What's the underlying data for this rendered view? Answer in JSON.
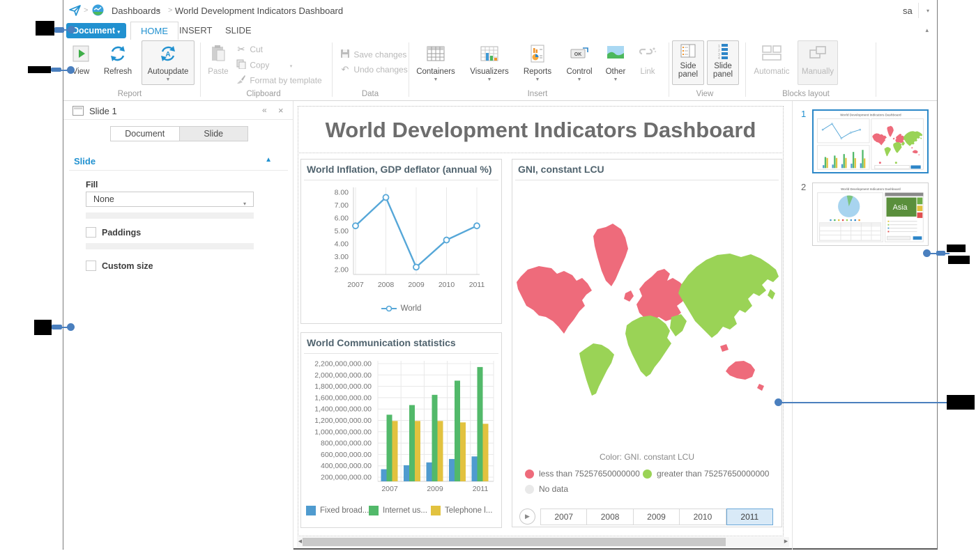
{
  "app": {
    "breadcrumb": {
      "section": "Dashboards",
      "title": "World Development Indicators Dashboard",
      "user": "sa"
    },
    "menu": {
      "document": "Document",
      "tabs": [
        "HOME",
        "INSERT",
        "SLIDE"
      ],
      "active_tab": "HOME"
    }
  },
  "ribbon": {
    "report": {
      "label": "Report",
      "view": "View",
      "refresh": "Refresh",
      "autoupdate": "Autoupdate"
    },
    "clipboard": {
      "label": "Clipboard",
      "paste": "Paste",
      "cut": "Cut",
      "copy": "Copy",
      "format": "Format by template"
    },
    "data": {
      "label": "Data",
      "save": "Save changes",
      "undo": "Undo changes"
    },
    "insert": {
      "label": "Insert",
      "containers": "Containers",
      "visualizers": "Visualizers",
      "reports": "Reports",
      "control": "Control",
      "other": "Other",
      "link": "Link"
    },
    "view": {
      "label": "View",
      "side": "Side panel",
      "slide": "Slide panel"
    },
    "blocks": {
      "label": "Blocks layout",
      "automatic": "Automatic",
      "manually": "Manually"
    }
  },
  "left_panel": {
    "header": "Slide 1",
    "tab_document": "Document",
    "tab_slide": "Slide",
    "active_tab": "Slide",
    "section_title": "Slide",
    "fill_label": "Fill",
    "fill_value": "None",
    "paddings_label": "Paddings",
    "custom_size_label": "Custom size"
  },
  "dashboard": {
    "title": "World Development Indicators Dashboard"
  },
  "chart_data": [
    {
      "type": "line",
      "title": "World Inflation, GDP deflator (annual %)",
      "x": [
        "2007",
        "2008",
        "2009",
        "2010",
        "2011"
      ],
      "series": [
        {
          "name": "World",
          "values": [
            5.4,
            7.6,
            2.2,
            4.3,
            5.4
          ]
        }
      ],
      "ylim": [
        2,
        8
      ],
      "yticks": [
        "8.00",
        "7.00",
        "6.00",
        "5.00",
        "4.00",
        "3.00",
        "2.00"
      ],
      "grid": "vertical",
      "legend_position": "bottom"
    },
    {
      "type": "bar",
      "title": "World Communication statistics",
      "categories": [
        "2007",
        "2008",
        "2009",
        "2010",
        "2011"
      ],
      "visible_xticks": [
        "2007",
        "2009",
        "2011"
      ],
      "series": [
        {
          "name": "Fixed broad...",
          "color": "#4f9bcf",
          "values": [
            340000000,
            410000000,
            460000000,
            520000000,
            565000000
          ]
        },
        {
          "name": "Internet us...",
          "color": "#52b96a",
          "values": [
            1300000000,
            1470000000,
            1650000000,
            1900000000,
            2140000000
          ]
        },
        {
          "name": "Telephone l...",
          "color": "#e2c23f",
          "values": [
            1190000000,
            1190000000,
            1190000000,
            1165000000,
            1140000000
          ]
        }
      ],
      "ytick_values": [
        2200000000,
        2000000000,
        1800000000,
        1600000000,
        1400000000,
        1200000000,
        1000000000,
        800000000,
        600000000,
        400000000,
        200000000
      ],
      "yticks": [
        "2,200,000,000.00",
        "2,000,000,000.00",
        "1,800,000,000.00",
        "1,600,000,000.00",
        "1,400,000,000.00",
        "1,200,000,000.00",
        "1,000,000,000.00",
        "800,000,000.00",
        "600,000,000.00",
        "400,000,000.00",
        "200,000,000.00"
      ],
      "legend_position": "bottom"
    },
    {
      "type": "choropleth",
      "title": "GNI, constant LCU",
      "color_caption": "Color: GNI. constant LCU",
      "classes": [
        {
          "label": "less than 75257650000000",
          "color": "#ee6b7b",
          "regions": [
            "North America",
            "Greenland",
            "Europe",
            "Australia"
          ]
        },
        {
          "label": "greater than 75257650000000",
          "color": "#9ad356",
          "regions": [
            "Asia",
            "Africa",
            "South America",
            "Middle East"
          ]
        },
        {
          "label": "No data",
          "color": "#e9e9e9",
          "regions": []
        }
      ],
      "years": [
        "2007",
        "2008",
        "2009",
        "2010",
        "2011"
      ],
      "selected_year": "2011"
    }
  ],
  "map_panel": {
    "title": "GNI, constant LCU",
    "caption": "Color: GNI. constant LCU",
    "legend_less": "less than 75257650000000",
    "legend_greater": "greater than 75257650000000",
    "legend_nodata": "No data",
    "years": [
      "2007",
      "2008",
      "2009",
      "2010",
      "2011"
    ],
    "selected_year": "2011"
  },
  "slides_panel": {
    "slide1_number": "1",
    "slide2_number": "2",
    "thumb_title": "World Development Indicators Dashboard",
    "thumb2_asia": "Asia"
  },
  "colors": {
    "accent": "#2191d0",
    "line_series": "#56a7d8",
    "bar_blue": "#4f9bcf",
    "bar_green": "#52b96a",
    "bar_yellow": "#e2c23f",
    "map_less": "#ee6b7b",
    "map_greater": "#9ad356",
    "map_nodata": "#e9e9e9",
    "year_selected_bg": "#d9eaf7",
    "year_selected_border": "#6aa7d8"
  }
}
